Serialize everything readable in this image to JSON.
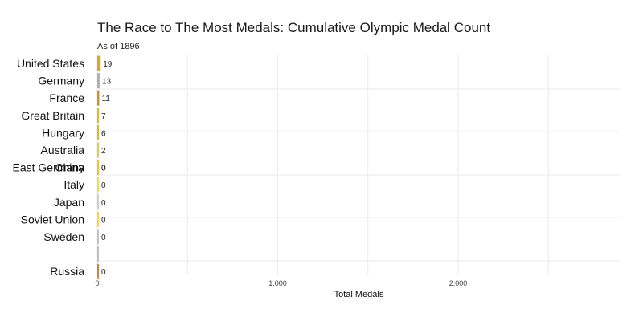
{
  "chart_data": {
    "type": "bar",
    "orientation": "horizontal",
    "title": "The Race to The Most Medals: Cumulative Olympic Medal Count",
    "subtitle": "As of 1896",
    "xlabel": "Total Medals",
    "ylabel": "",
    "xlim": [
      0,
      2900
    ],
    "x_ticks": [
      0,
      1000,
      2000
    ],
    "x_tick_labels": [
      "0",
      "1,000",
      "2,000"
    ],
    "grid": true,
    "legend": "none",
    "bars": [
      {
        "country": "United States",
        "value": 19,
        "rank": 1,
        "color": "#D4A017"
      },
      {
        "country": "Germany",
        "value": 13,
        "rank": 2,
        "color": "#A8A8A8"
      },
      {
        "country": "France",
        "value": 11,
        "rank": 3,
        "color": "#C48A1A"
      },
      {
        "country": "Great Britain",
        "value": 7,
        "rank": 4,
        "color": "#DDB51F"
      },
      {
        "country": "Hungary",
        "value": 6,
        "rank": 5,
        "color": "#D9AE22"
      },
      {
        "country": "Australia",
        "value": 2,
        "rank": 6,
        "color": "#E3C14A"
      },
      {
        "country": "East Germany",
        "value": 0,
        "rank": 7,
        "color": "#F0D040"
      },
      {
        "country": "China",
        "value": 0,
        "rank": 7,
        "color": "#E7C23A"
      },
      {
        "country": "Italy",
        "value": 0,
        "rank": 8,
        "color": "#F2D54E"
      },
      {
        "country": "Japan",
        "value": 0,
        "rank": 9,
        "color": "#C9C9C9"
      },
      {
        "country": "Soviet Union",
        "value": 0,
        "rank": 10,
        "color": "#F4D23A"
      },
      {
        "country": "Sweden",
        "value": 0,
        "rank": 11,
        "color": "#BDBDBD"
      },
      {
        "country": "",
        "value": 0,
        "rank": 12,
        "color": "#B8B8B8"
      },
      {
        "country": "Russia",
        "value": 0,
        "rank": 13,
        "color": "#CF7A2E"
      }
    ]
  }
}
